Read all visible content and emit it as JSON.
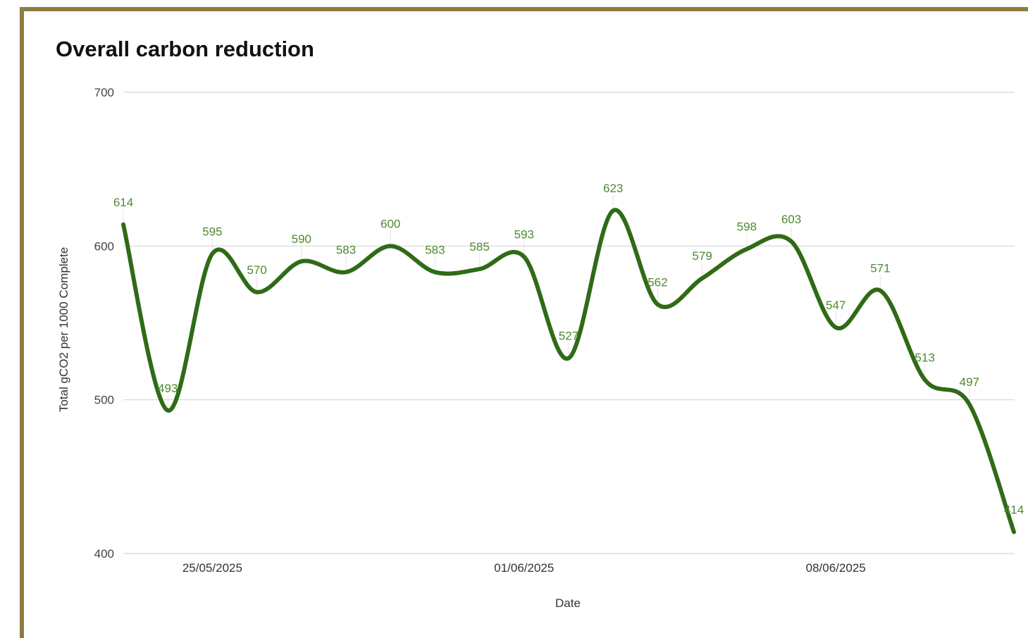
{
  "chart_data": {
    "type": "line",
    "title": "Overall carbon reduction",
    "xlabel": "Date",
    "ylabel": "Total gCO2 per 1000 Complete",
    "ylim": [
      400,
      700
    ],
    "yticks": [
      400,
      500,
      600,
      700
    ],
    "x": [
      "23/05/2025",
      "24/05/2025",
      "25/05/2025",
      "26/05/2025",
      "27/05/2025",
      "28/05/2025",
      "29/05/2025",
      "30/05/2025",
      "31/05/2025",
      "01/06/2025",
      "02/06/2025",
      "03/06/2025",
      "04/06/2025",
      "05/06/2025",
      "06/06/2025",
      "07/06/2025",
      "08/06/2025",
      "09/06/2025",
      "10/06/2025",
      "11/06/2025",
      "12/06/2025"
    ],
    "xtick_labels": [
      "25/05/2025",
      "01/06/2025",
      "08/06/2025"
    ],
    "values": [
      614,
      493,
      595,
      570,
      590,
      583,
      600,
      583,
      585,
      593,
      527,
      623,
      562,
      579,
      598,
      603,
      547,
      571,
      513,
      497,
      414
    ],
    "series_color": "#2f6b17",
    "label_color": "#4f8a2e",
    "grid": true,
    "legend": "none",
    "smooth": true
  }
}
